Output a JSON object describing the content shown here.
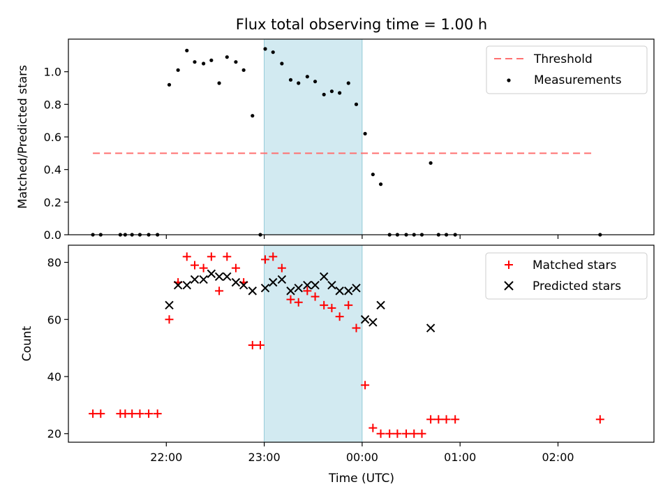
{
  "chart_data": [
    {
      "type": "scatter",
      "title": "Flux total observing time = 1.00 h",
      "ylabel": "Matched/Predicted stars",
      "xlabel": "",
      "xlim": [
        21.0,
        26.98
      ],
      "ylim": [
        0.0,
        1.2
      ],
      "yticks": [
        0.0,
        0.2,
        0.4,
        0.6,
        0.8,
        1.0
      ],
      "ytick_labels": [
        "0.0",
        "0.2",
        "0.4",
        "0.6",
        "0.8",
        "1.0"
      ],
      "highlight_span": {
        "x": [
          23.0,
          24.0
        ],
        "color": "#add8e6"
      },
      "threshold": {
        "name": "Threshold",
        "y": 0.5,
        "x": [
          21.25,
          26.35
        ],
        "color": "#ff7070"
      },
      "legend_position": "upper right",
      "series": [
        {
          "name": "Measurements",
          "color": "#000000",
          "x": [
            21.25,
            21.33,
            21.53,
            21.58,
            21.65,
            21.73,
            21.82,
            21.91,
            22.03,
            22.12,
            22.21,
            22.29,
            22.38,
            22.46,
            22.54,
            22.62,
            22.71,
            22.79,
            22.88,
            22.96,
            23.01,
            23.09,
            23.18,
            23.27,
            23.35,
            23.44,
            23.52,
            23.61,
            23.69,
            23.77,
            23.86,
            23.94,
            24.03,
            24.11,
            24.19,
            24.28,
            24.36,
            24.45,
            24.53,
            24.61,
            24.7,
            24.78,
            24.86,
            24.95,
            26.43
          ],
          "values": [
            0.0,
            0.0,
            0.0,
            0.0,
            0.0,
            0.0,
            0.0,
            0.0,
            0.92,
            1.01,
            1.13,
            1.06,
            1.05,
            1.07,
            0.93,
            1.09,
            1.06,
            1.01,
            0.73,
            0.0,
            1.14,
            1.12,
            1.05,
            0.95,
            0.93,
            0.97,
            0.94,
            0.86,
            0.88,
            0.87,
            0.93,
            0.8,
            0.62,
            0.37,
            0.31,
            0.0,
            0.0,
            0.0,
            0.0,
            0.0,
            0.44,
            0.0,
            0.0,
            0.0,
            0.0
          ]
        }
      ]
    },
    {
      "type": "scatter",
      "title": "",
      "ylabel": "Count",
      "xlabel": "Time (UTC)",
      "xlim": [
        21.0,
        26.98
      ],
      "ylim": [
        17.0,
        86.0
      ],
      "yticks": [
        20,
        40,
        60,
        80
      ],
      "ytick_labels": [
        "20",
        "40",
        "60",
        "80"
      ],
      "xticks": [
        22.0,
        23.0,
        24.0,
        25.0,
        26.0
      ],
      "xtick_labels": [
        "22:00",
        "23:00",
        "00:00",
        "01:00",
        "02:00"
      ],
      "highlight_span": {
        "x": [
          23.0,
          24.0
        ],
        "color": "#add8e6"
      },
      "legend_position": "upper right",
      "series": [
        {
          "name": "Matched stars",
          "marker": "+",
          "color": "#ff0000",
          "x": [
            21.25,
            21.33,
            21.53,
            21.58,
            21.65,
            21.73,
            21.82,
            21.91,
            22.03,
            22.12,
            22.21,
            22.29,
            22.38,
            22.46,
            22.54,
            22.62,
            22.71,
            22.79,
            22.88,
            22.96,
            23.01,
            23.09,
            23.18,
            23.27,
            23.35,
            23.44,
            23.52,
            23.61,
            23.69,
            23.77,
            23.86,
            23.94,
            24.03,
            24.11,
            24.19,
            24.28,
            24.36,
            24.45,
            24.53,
            24.61,
            24.7,
            24.78,
            24.86,
            24.95,
            26.43
          ],
          "values": [
            27,
            27,
            27,
            27,
            27,
            27,
            27,
            27,
            60,
            73,
            82,
            79,
            78,
            82,
            70,
            82,
            78,
            73,
            51,
            51,
            81,
            82,
            78,
            67,
            66,
            70,
            68,
            65,
            64,
            61,
            65,
            57,
            37,
            22,
            20,
            20,
            20,
            20,
            20,
            20,
            25,
            25,
            25,
            25,
            25
          ]
        },
        {
          "name": "Predicted stars",
          "marker": "x",
          "color": "#000000",
          "x": [
            22.03,
            22.12,
            22.21,
            22.29,
            22.38,
            22.46,
            22.54,
            22.62,
            22.71,
            22.79,
            22.88,
            23.01,
            23.09,
            23.18,
            23.27,
            23.35,
            23.44,
            23.52,
            23.61,
            23.69,
            23.77,
            23.86,
            23.94,
            24.03,
            24.11,
            24.19,
            24.7
          ],
          "values": [
            65,
            72,
            72,
            74,
            74,
            76,
            75,
            75,
            73,
            72,
            70,
            71,
            73,
            74,
            70,
            71,
            72,
            72,
            75,
            72,
            70,
            70,
            71,
            60,
            59,
            65,
            57
          ]
        }
      ]
    }
  ]
}
